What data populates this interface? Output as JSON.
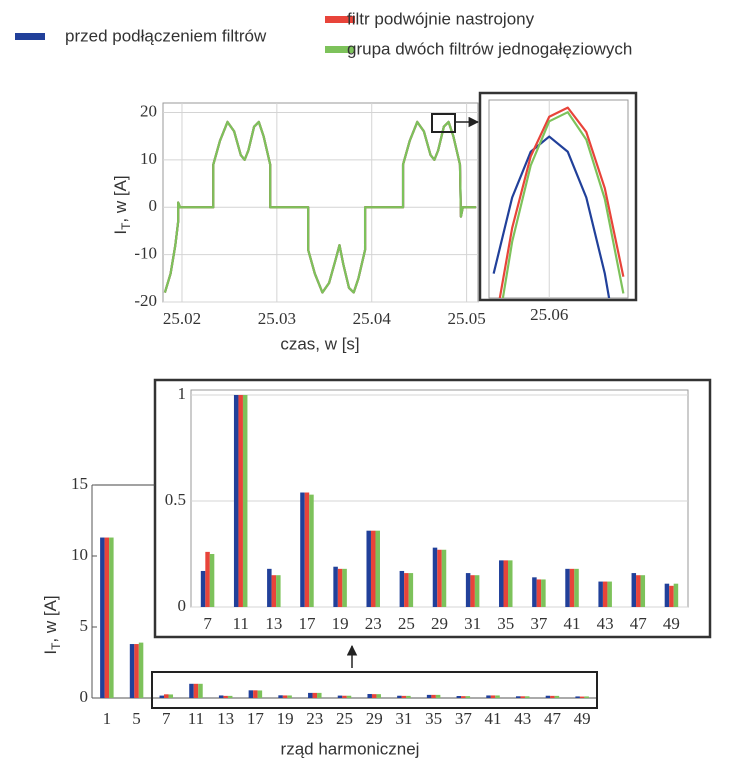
{
  "chart_data": [
    {
      "type": "line",
      "xlabel": "czas, w [s]",
      "ylabel": [
        "I",
        "T",
        ", w [A]"
      ],
      "xlim": [
        25.018,
        25.0512
      ],
      "ylim": [
        -20,
        22
      ],
      "xticks": [
        25.02,
        25.03,
        25.04,
        25.05
      ],
      "yticks": [
        -20,
        -10,
        0,
        10,
        20
      ],
      "grid": true,
      "x": [
        25.0182,
        25.0188,
        25.0193,
        25.0196,
        25.0196,
        25.0198,
        25.0233,
        25.0233,
        25.024,
        25.0248,
        25.0255,
        25.0262,
        25.0266,
        25.027,
        25.0276,
        25.0281,
        25.0286,
        25.0293,
        25.0293,
        25.0333,
        25.0333,
        25.034,
        25.0348,
        25.0355,
        25.0362,
        25.0366,
        25.037,
        25.0376,
        25.0381,
        25.0386,
        25.0393,
        25.0393,
        25.0433,
        25.0433,
        25.044,
        25.0448,
        25.0455,
        25.0462,
        25.0466,
        25.047,
        25.0476,
        25.0481,
        25.0486,
        25.0493,
        25.0494,
        25.0496,
        25.051
      ],
      "series": [
        {
          "name": "przed podłączeniem filtrów",
          "color": "#21409a",
          "values": [
            -18,
            -14,
            -8,
            -3,
            1,
            0,
            0,
            9,
            14,
            18,
            16,
            11,
            10,
            12,
            17,
            18,
            15,
            9,
            0,
            0,
            -9,
            -14,
            -18,
            -16,
            -11,
            -8,
            -12,
            -17,
            -18,
            -15,
            -9,
            0,
            0,
            9,
            14,
            18,
            16,
            11,
            10,
            12,
            17,
            18,
            15,
            9,
            -2,
            0,
            0
          ]
        },
        {
          "name": "filtr podwójnie nastrojony",
          "color": "#e8443a",
          "values": [
            -18,
            -14,
            -8,
            -3,
            1,
            0,
            0,
            9,
            14,
            18,
            16,
            11,
            10,
            12,
            17,
            18,
            15,
            9,
            0,
            0,
            -9,
            -14,
            -18,
            -16,
            -11,
            -8,
            -12,
            -17,
            -18,
            -15,
            -9,
            0,
            0,
            9,
            14,
            18,
            16,
            11,
            10,
            12,
            17,
            18,
            15,
            9,
            -2,
            0,
            0
          ]
        },
        {
          "name": "grupa dwóch filtrów jednogałęziowych",
          "color": "#7dc25b",
          "values": [
            -18,
            -14,
            -8,
            -3,
            1,
            0,
            0,
            9,
            14,
            18,
            16,
            11,
            10,
            12,
            17,
            18,
            15,
            9,
            0,
            0,
            -9,
            -14,
            -18,
            -16,
            -11,
            -8,
            -12,
            -17,
            -18,
            -15,
            -9,
            0,
            0,
            9,
            14,
            18,
            16,
            11,
            10,
            12,
            17,
            18,
            15,
            9,
            -2,
            0,
            0
          ]
        }
      ]
    },
    {
      "type": "line",
      "xlim": [
        25.0535,
        25.0685
      ],
      "ylim": [
        16.8,
        18.1
      ],
      "xticks": [
        25.06
      ],
      "grid": true,
      "x": [
        25.054,
        25.056,
        25.058,
        25.06,
        25.062,
        25.064,
        25.066,
        25.068
      ],
      "series": [
        {
          "color": "#21409a",
          "values": [
            16.96,
            17.46,
            17.76,
            17.86,
            17.76,
            17.46,
            16.96,
            16.26
          ]
        },
        {
          "color": "#e8443a",
          "values": [
            16.57,
            17.26,
            17.73,
            17.99,
            18.05,
            17.89,
            17.52,
            16.94
          ]
        },
        {
          "color": "#7dc25b",
          "values": [
            16.43,
            17.17,
            17.67,
            17.96,
            18.02,
            17.84,
            17.45,
            16.83
          ]
        }
      ]
    },
    {
      "type": "bar",
      "xlabel": "rząd harmonicznej",
      "ylabel": [
        "I",
        "T",
        ", w [A]"
      ],
      "ylim": [
        0,
        15
      ],
      "yticks": [
        0,
        5,
        10,
        15
      ],
      "categories": [
        "1",
        "5",
        "7",
        "11",
        "13",
        "17",
        "19",
        "23",
        "25",
        "29",
        "31",
        "35",
        "37",
        "41",
        "43",
        "47",
        "49"
      ],
      "series": [
        {
          "color": "#21409a",
          "values": [
            11.3,
            3.8,
            0.17,
            1,
            0.18,
            0.54,
            0.19,
            0.36,
            0.17,
            0.28,
            0.16,
            0.22,
            0.14,
            0.18,
            0.12,
            0.16,
            0.11
          ]
        },
        {
          "color": "#e8443a",
          "values": [
            11.3,
            3.8,
            0.26,
            1,
            0.15,
            0.54,
            0.18,
            0.36,
            0.16,
            0.27,
            0.15,
            0.22,
            0.13,
            0.18,
            0.12,
            0.15,
            0.1
          ]
        },
        {
          "color": "#7dc25b",
          "values": [
            11.3,
            3.9,
            0.25,
            1,
            0.15,
            0.53,
            0.18,
            0.36,
            0.16,
            0.27,
            0.15,
            0.22,
            0.13,
            0.18,
            0.12,
            0.15,
            0.11
          ]
        }
      ]
    },
    {
      "type": "bar-zoom",
      "ylim": [
        0,
        1
      ],
      "yticks": [
        0,
        0.5,
        1
      ],
      "grid": true,
      "categories": [
        "7",
        "11",
        "13",
        "17",
        "19",
        "23",
        "25",
        "29",
        "31",
        "35",
        "37",
        "41",
        "43",
        "47",
        "49"
      ]
    }
  ]
}
